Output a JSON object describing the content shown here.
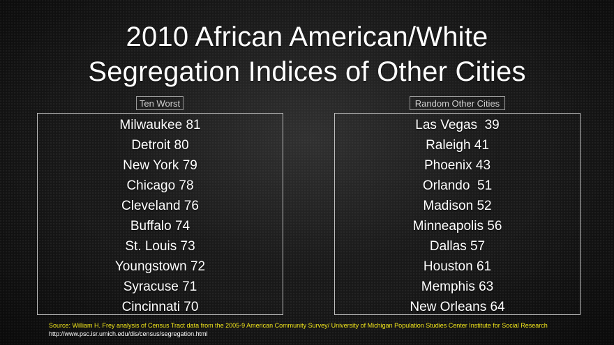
{
  "title": {
    "line1": "2010 African American/White",
    "line2": "Segregation Indices of Other Cities"
  },
  "left_panel": {
    "label": "Ten Worst",
    "items": [
      "Milwaukee 81",
      "Detroit 80",
      "New York 79",
      "Chicago 78",
      "Cleveland 76",
      "Buffalo 74",
      "St. Louis 73",
      "Youngstown 72",
      "Syracuse 71",
      "Cincinnati 70"
    ]
  },
  "right_panel": {
    "label": "Random Other Cities",
    "items": [
      "Las Vegas  39",
      "Raleigh 41",
      "Phoenix 43",
      "Orlando  51",
      "Madison 52",
      "Minneapolis 56",
      "Dallas 57",
      "Houston 61",
      "Memphis 63",
      "New Orleans 64"
    ]
  },
  "source": {
    "text": "Source: William  H.  Frey analysis of Census Tract data from the 2005-9 American Community Survey/ University of Michigan Population Studies Center Institute for Social Research",
    "url": "http://www.psc.isr.umich.edu/dis/census/segregation.html"
  },
  "colors": {
    "source_text": "#f2e61a",
    "title_text": "#ffffff",
    "panel_border": "#bdbdbd"
  }
}
